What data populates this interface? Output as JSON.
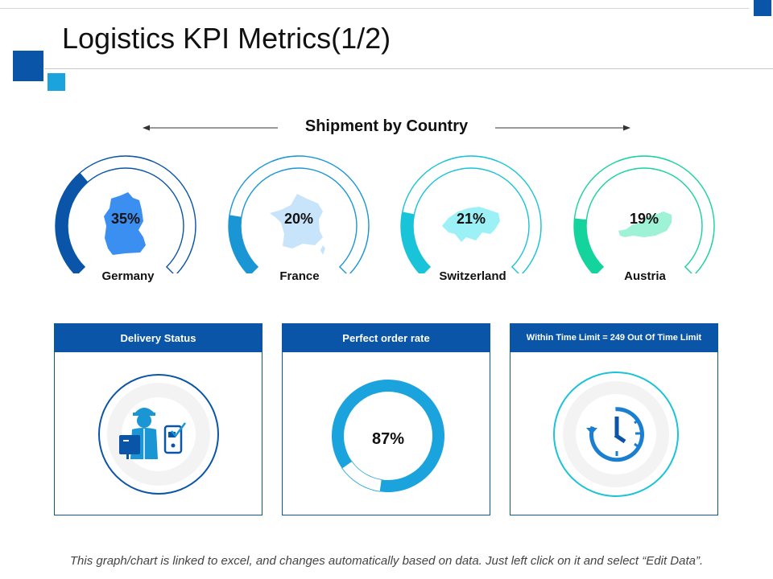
{
  "title": "Logistics KPI Metrics(1/2)",
  "section_title": "Shipment by Country",
  "countries": [
    {
      "name": "Germany",
      "value": 35,
      "label": "35%",
      "color": "#0b55a8",
      "map_color": "#3b8ff0"
    },
    {
      "name": "France",
      "value": 20,
      "label": "20%",
      "color": "#1a96d4",
      "map_color": "#c8e4fb"
    },
    {
      "name": "Switzerland",
      "value": 21,
      "label": "21%",
      "color": "#19c3d8",
      "map_color": "#9cf1f7"
    },
    {
      "name": "Austria",
      "value": 19,
      "label": "19%",
      "color": "#15d39c",
      "map_color": "#9ef2d6"
    }
  ],
  "cards": {
    "delivery_status": {
      "title": "Delivery Status"
    },
    "perfect_order": {
      "title": "Perfect order rate",
      "value": 87,
      "label": "87%"
    },
    "time_limit": {
      "title": "Within Time Limit = 249 Out Of Time Limit"
    }
  },
  "chart_data": [
    {
      "type": "gauge",
      "title": "Shipment by Country",
      "categories": [
        "Germany",
        "France",
        "Switzerland",
        "Austria"
      ],
      "values": [
        35,
        20,
        21,
        19
      ],
      "unit": "%"
    },
    {
      "type": "donut",
      "title": "Perfect order rate",
      "values": [
        87,
        13
      ],
      "label": "87%"
    }
  ],
  "footer": "This graph/chart is linked to excel, and changes automatically based on data.  Just left click on it and select “Edit Data”.",
  "colors": {
    "brand": "#0b55a8",
    "accent": "#1aa3dc",
    "teal": "#19c3d8"
  }
}
